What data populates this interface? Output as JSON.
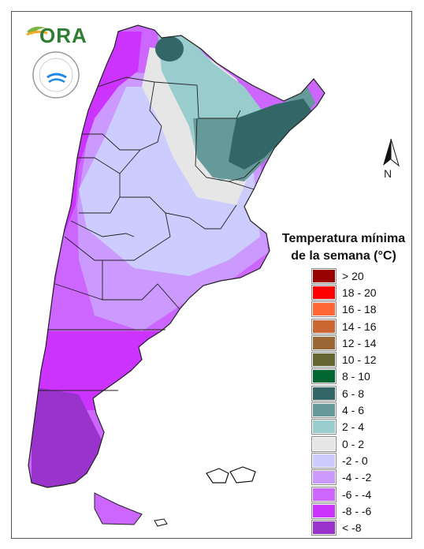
{
  "branding": {
    "ora_logo_text": "ORA",
    "smn_logo_ring_text": "SERVICIO METEOROLÓGICO NACIONAL",
    "smn_logo_country": "ARGENTINA"
  },
  "north_arrow": {
    "label": "N"
  },
  "legend": {
    "title_line1": "Temperatura mínima",
    "title_line2": "de la semana (°C)",
    "items": [
      {
        "label": "> 20",
        "color": "#990000"
      },
      {
        "label": "18 - 20",
        "color": "#ff0000"
      },
      {
        "label": "16 - 18",
        "color": "#ff6633"
      },
      {
        "label": "14 - 16",
        "color": "#cc6633"
      },
      {
        "label": "12 - 14",
        "color": "#996633"
      },
      {
        "label": "10 - 12",
        "color": "#666633"
      },
      {
        "label": "8 - 10",
        "color": "#006633"
      },
      {
        "label": "6 - 8",
        "color": "#336666"
      },
      {
        "label": "4 - 6",
        "color": "#669999"
      },
      {
        "label": "2 - 4",
        "color": "#99cccc"
      },
      {
        "label": "0 - 2",
        "color": "#e6e6e6"
      },
      {
        "label": "-2 - 0",
        "color": "#ccccff"
      },
      {
        "label": "-4 - -2",
        "color": "#cc99ff"
      },
      {
        "label": "-6 - -4",
        "color": "#cc66ff"
      },
      {
        "label": "-8 - -6",
        "color": "#cc33ff"
      },
      {
        "label": "< -8",
        "color": "#9933cc"
      }
    ]
  }
}
